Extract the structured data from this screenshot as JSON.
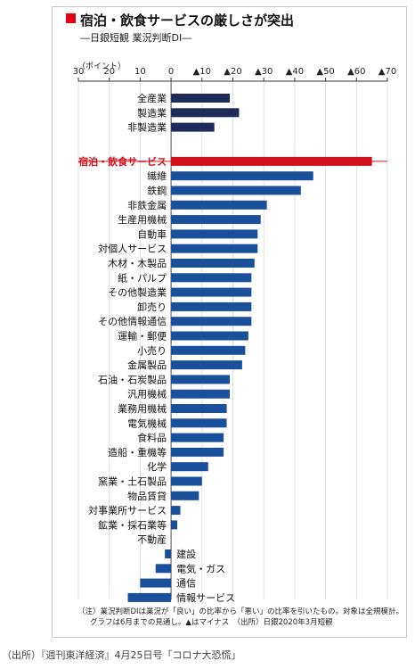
{
  "title": "宿泊・飲食サービスの厳しさが突出",
  "subtitle": "―日銀短観 業況判断DI―",
  "unit_label": "（ポイント）",
  "notes": [
    "（注）業況判断DIは業況が「良い」の比率から「悪い」の比率を引いたもの。対象は全規模計。",
    "グラフは6月までの見通し。▲はマイナス　（出所）日銀2020年3月短観"
  ],
  "caption": "（出所）『週刊東洋経済』4月25日号「コロナ大恐慌」",
  "colors": {
    "highlight": "#d0101b",
    "aggregate": "#1f2a5c",
    "industry": "#1a4f9c",
    "title_mark": "#e60012"
  },
  "chart_data": {
    "type": "bar",
    "orientation": "horizontal",
    "sign_note": "negative DI plotted to the right; ▲ = minus",
    "ticks": [
      {
        "value": 30,
        "label": "30"
      },
      {
        "value": 20,
        "label": "20"
      },
      {
        "value": 10,
        "label": "10"
      },
      {
        "value": 0,
        "label": "0"
      },
      {
        "value": -10,
        "label": "▲10"
      },
      {
        "value": -20,
        "label": "▲20"
      },
      {
        "value": -30,
        "label": "▲30"
      },
      {
        "value": -40,
        "label": "▲40"
      },
      {
        "value": -50,
        "label": "▲50"
      },
      {
        "value": -60,
        "label": "▲60"
      },
      {
        "value": -70,
        "label": "▲70"
      }
    ],
    "xlim": [
      30,
      -70
    ],
    "groups": [
      {
        "kind": "aggregate",
        "items": [
          {
            "label": "全産業",
            "value": -19
          },
          {
            "label": "製造業",
            "value": -22
          },
          {
            "label": "非製造業",
            "value": -14
          }
        ]
      },
      {
        "kind": "highlight",
        "items": [
          {
            "label": "宿泊・飲食サービス",
            "value": -65
          }
        ]
      },
      {
        "kind": "industry",
        "items": [
          {
            "label": "繊維",
            "value": -46
          },
          {
            "label": "鉄鋼",
            "value": -42
          },
          {
            "label": "非鉄金属",
            "value": -31
          },
          {
            "label": "生産用機械",
            "value": -29
          },
          {
            "label": "自動車",
            "value": -28
          },
          {
            "label": "対個人サービス",
            "value": -28
          },
          {
            "label": "木材・木製品",
            "value": -27
          },
          {
            "label": "紙・パルプ",
            "value": -26
          },
          {
            "label": "その他製造業",
            "value": -26
          },
          {
            "label": "卸売り",
            "value": -26
          },
          {
            "label": "その他情報通信",
            "value": -26
          },
          {
            "label": "運輸・郵便",
            "value": -25
          },
          {
            "label": "小売り",
            "value": -24
          },
          {
            "label": "金属製品",
            "value": -23
          },
          {
            "label": "石油・石炭製品",
            "value": -19
          },
          {
            "label": "汎用機械",
            "value": -19
          },
          {
            "label": "業務用機械",
            "value": -18
          },
          {
            "label": "電気機械",
            "value": -18
          },
          {
            "label": "食料品",
            "value": -17
          },
          {
            "label": "造船・重機等",
            "value": -17
          },
          {
            "label": "化学",
            "value": -12
          },
          {
            "label": "窯業・土石製品",
            "value": -10
          },
          {
            "label": "物品賃貸",
            "value": -9
          },
          {
            "label": "対事業所サービス",
            "value": -3
          },
          {
            "label": "鉱業・採石業等",
            "value": -2
          },
          {
            "label": "不動産",
            "value": 0
          },
          {
            "label": "建設",
            "value": 2
          },
          {
            "label": "電気・ガス",
            "value": 5
          },
          {
            "label": "通信",
            "value": 10
          },
          {
            "label": "情報サービス",
            "value": 14
          }
        ]
      }
    ]
  }
}
